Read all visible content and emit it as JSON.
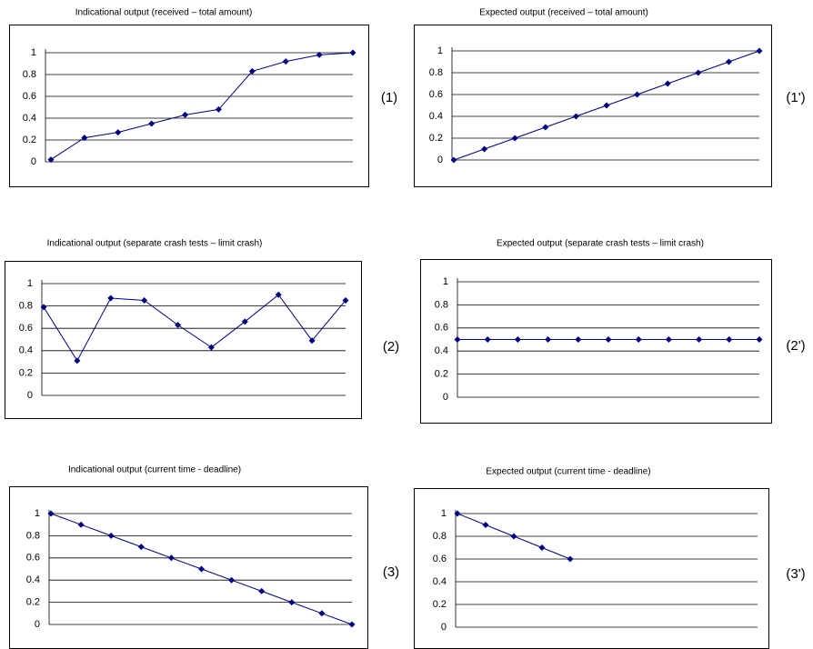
{
  "chart_data": [
    {
      "type": "line",
      "title": "Indicational output (received – total amount)",
      "panel_label": "(1)",
      "categories": [
        null,
        null,
        null,
        null,
        null,
        null,
        null,
        null,
        null,
        null
      ],
      "values": [
        0.02,
        0.22,
        0.27,
        0.35,
        0.43,
        0.48,
        0.83,
        0.92,
        0.98,
        1.0
      ],
      "color": "#000080",
      "ylim": [
        0,
        1
      ],
      "yticks": [
        0,
        0.2,
        0.4,
        0.6,
        0.8,
        1
      ],
      "grid": true
    },
    {
      "type": "line",
      "title": "Expected output (received – total amount)",
      "panel_label": "(1')",
      "categories": [
        null,
        null,
        null,
        null,
        null,
        null,
        null,
        null,
        null,
        null,
        null
      ],
      "values": [
        0,
        0.1,
        0.2,
        0.3,
        0.4,
        0.5,
        0.6,
        0.7,
        0.8,
        0.9,
        1.0
      ],
      "color": "#000080",
      "ylim": [
        0,
        1
      ],
      "yticks": [
        0,
        0.2,
        0.4,
        0.6,
        0.8,
        1
      ],
      "grid": true
    },
    {
      "type": "line",
      "title": "Indicational output (separate crash tests – limit crash)",
      "panel_label": "(2)",
      "categories": [
        null,
        null,
        null,
        null,
        null,
        null,
        null,
        null,
        null,
        null
      ],
      "values": [
        0.79,
        0.31,
        0.87,
        0.85,
        0.63,
        0.43,
        0.66,
        0.9,
        0.49,
        0.85
      ],
      "color": "#000080",
      "ylim": [
        0,
        1
      ],
      "yticks": [
        0,
        0.2,
        0.4,
        0.6,
        0.8,
        1
      ],
      "grid": true
    },
    {
      "type": "line",
      "title": "Expected output (separate crash tests – limit crash)",
      "panel_label": "(2')",
      "categories": [
        null,
        null,
        null,
        null,
        null,
        null,
        null,
        null,
        null,
        null,
        null
      ],
      "values": [
        0.5,
        0.5,
        0.5,
        0.5,
        0.5,
        0.5,
        0.5,
        0.5,
        0.5,
        0.5,
        0.5
      ],
      "color": "#000080",
      "ylim": [
        0,
        1
      ],
      "yticks": [
        0,
        0.2,
        0.4,
        0.6,
        0.8,
        1
      ],
      "grid": true
    },
    {
      "type": "line",
      "title": "Indicational output (current time - deadline)",
      "panel_label": "(3)",
      "categories": [
        null,
        null,
        null,
        null,
        null,
        null,
        null,
        null,
        null,
        null,
        null
      ],
      "values": [
        1.0,
        0.9,
        0.8,
        0.7,
        0.6,
        0.5,
        0.4,
        0.3,
        0.2,
        0.1,
        0
      ],
      "color": "#000080",
      "ylim": [
        0,
        1
      ],
      "yticks": [
        0,
        0.2,
        0.4,
        0.6,
        0.8,
        1
      ],
      "grid": true
    },
    {
      "type": "line",
      "title": "Expected output (current time - deadline)",
      "panel_label": "(3')",
      "categories": [
        null,
        null,
        null,
        null,
        null,
        null,
        null,
        null,
        null,
        null,
        null
      ],
      "values": [
        1.0,
        0.9,
        0.8,
        0.7,
        0.6,
        null,
        null,
        null,
        null,
        null,
        null
      ],
      "color": "#000080",
      "ylim": [
        0,
        1
      ],
      "yticks": [
        0,
        0.2,
        0.4,
        0.6,
        0.8,
        1
      ],
      "grid": true
    }
  ]
}
